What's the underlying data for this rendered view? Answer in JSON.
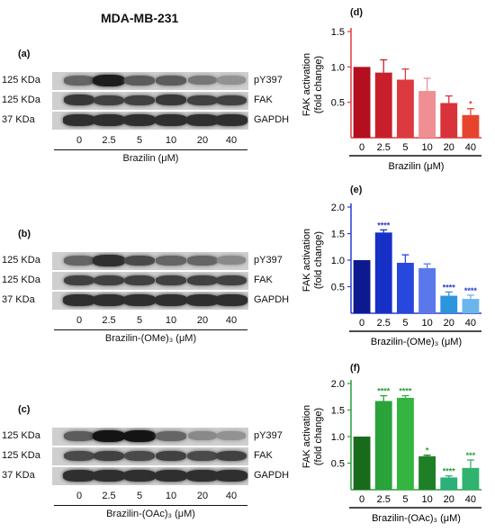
{
  "title": "MDA-MB-231",
  "blots": [
    {
      "panel": "(a)",
      "rows": [
        {
          "kda": "125 KDa",
          "protein": "pY397",
          "intensity": [
            0.55,
            0.95,
            0.6,
            0.6,
            0.45,
            0.3
          ]
        },
        {
          "kda": "125 KDa",
          "protein": "FAK",
          "intensity": [
            0.8,
            0.75,
            0.75,
            0.8,
            0.75,
            0.75
          ]
        },
        {
          "kda": "37 KDa",
          "protein": "GAPDH",
          "intensity": [
            0.85,
            0.85,
            0.85,
            0.85,
            0.85,
            0.85
          ]
        }
      ],
      "lanes": [
        "0",
        "2.5",
        "5",
        "10",
        "20",
        "40"
      ],
      "treatment": "Brazilin (μM)"
    },
    {
      "panel": "(b)",
      "rows": [
        {
          "kda": "125 KDa",
          "protein": "pY397",
          "intensity": [
            0.55,
            0.85,
            0.7,
            0.55,
            0.55,
            0.35
          ]
        },
        {
          "kda": "125 KDa",
          "protein": "FAK",
          "intensity": [
            0.75,
            0.75,
            0.75,
            0.75,
            0.75,
            0.75
          ]
        },
        {
          "kda": "37 KDa",
          "protein": "GAPDH",
          "intensity": [
            0.85,
            0.85,
            0.85,
            0.85,
            0.85,
            0.85
          ]
        }
      ],
      "lanes": [
        "0",
        "2.5",
        "5",
        "10",
        "20",
        "40"
      ],
      "treatment": "Brazilin-(OMe)₃ (μM)"
    },
    {
      "panel": "(c)",
      "rows": [
        {
          "kda": "125 KDa",
          "protein": "pY397",
          "intensity": [
            0.6,
            1.0,
            1.0,
            0.55,
            0.35,
            0.3
          ]
        },
        {
          "kda": "125 KDa",
          "protein": "FAK",
          "intensity": [
            0.7,
            0.75,
            0.7,
            0.75,
            0.7,
            0.75
          ]
        },
        {
          "kda": "37 KDa",
          "protein": "GAPDH",
          "intensity": [
            0.85,
            0.85,
            0.85,
            0.85,
            0.85,
            0.85
          ]
        }
      ],
      "lanes": [
        "0",
        "2.5",
        "5",
        "10",
        "20",
        "40"
      ],
      "treatment": "Brazilin-(OAc)₃ (μM)"
    }
  ],
  "chart_data": [
    {
      "panel": "(d)",
      "type": "bar",
      "ylabel": "FAK activation (fold change)",
      "xlabel": "Brazilin (μM)",
      "categories": [
        "0",
        "2.5",
        "5",
        "10",
        "20",
        "40"
      ],
      "values": [
        1.0,
        0.92,
        0.82,
        0.66,
        0.49,
        0.32
      ],
      "errors": [
        0.0,
        0.18,
        0.15,
        0.18,
        0.1,
        0.09
      ],
      "significance": [
        "",
        "",
        "",
        "",
        "",
        "*"
      ],
      "yticks": [
        "0.5",
        "1.0",
        "1.5"
      ],
      "ylim": [
        0,
        1.5
      ],
      "colors": [
        "#b30f1f",
        "#c8202a",
        "#dc3a3f",
        "#ef8e93",
        "#d8333b",
        "#e8442d"
      ],
      "axis_color": "#e03a3a",
      "sig_color": "#e03a3a"
    },
    {
      "panel": "(e)",
      "type": "bar",
      "ylabel": "FAK activation (fold change)",
      "xlabel": "Brazilin-(OMe)₃ (μM)",
      "categories": [
        "0",
        "2.5",
        "5",
        "10",
        "20",
        "40"
      ],
      "values": [
        1.0,
        1.52,
        0.95,
        0.85,
        0.33,
        0.27
      ],
      "errors": [
        0.0,
        0.05,
        0.15,
        0.08,
        0.07,
        0.07
      ],
      "significance": [
        "",
        "****",
        "",
        "",
        "****",
        "****"
      ],
      "yticks": [
        "0.5",
        "1.0",
        "1.5",
        "2.0"
      ],
      "ylim": [
        0,
        2.0
      ],
      "colors": [
        "#0d1a8f",
        "#1730c8",
        "#2747dd",
        "#5a78ec",
        "#2d95dd",
        "#6ab6ec"
      ],
      "axis_color": "#2a3acc",
      "sig_color": "#2a3acc"
    },
    {
      "panel": "(f)",
      "type": "bar",
      "ylabel": "FAK activation (fold change)",
      "xlabel": "Brazilin-(OAc)₃ (μM)",
      "categories": [
        "0",
        "2.5",
        "5",
        "10",
        "20",
        "40"
      ],
      "values": [
        1.0,
        1.67,
        1.73,
        0.63,
        0.23,
        0.41
      ],
      "errors": [
        0.0,
        0.1,
        0.04,
        0.02,
        0.03,
        0.15
      ],
      "significance": [
        "",
        "****",
        "****",
        "*",
        "****",
        "***"
      ],
      "yticks": [
        "0.5",
        "1.0",
        "1.5",
        "2.0"
      ],
      "ylim": [
        0,
        2.0
      ],
      "colors": [
        "#196b1c",
        "#2aa33a",
        "#33b53f",
        "#1f7f26",
        "#2bb07a",
        "#2fb36f"
      ],
      "axis_color": "#2a9d3a",
      "sig_color": "#2a9d3a"
    }
  ]
}
